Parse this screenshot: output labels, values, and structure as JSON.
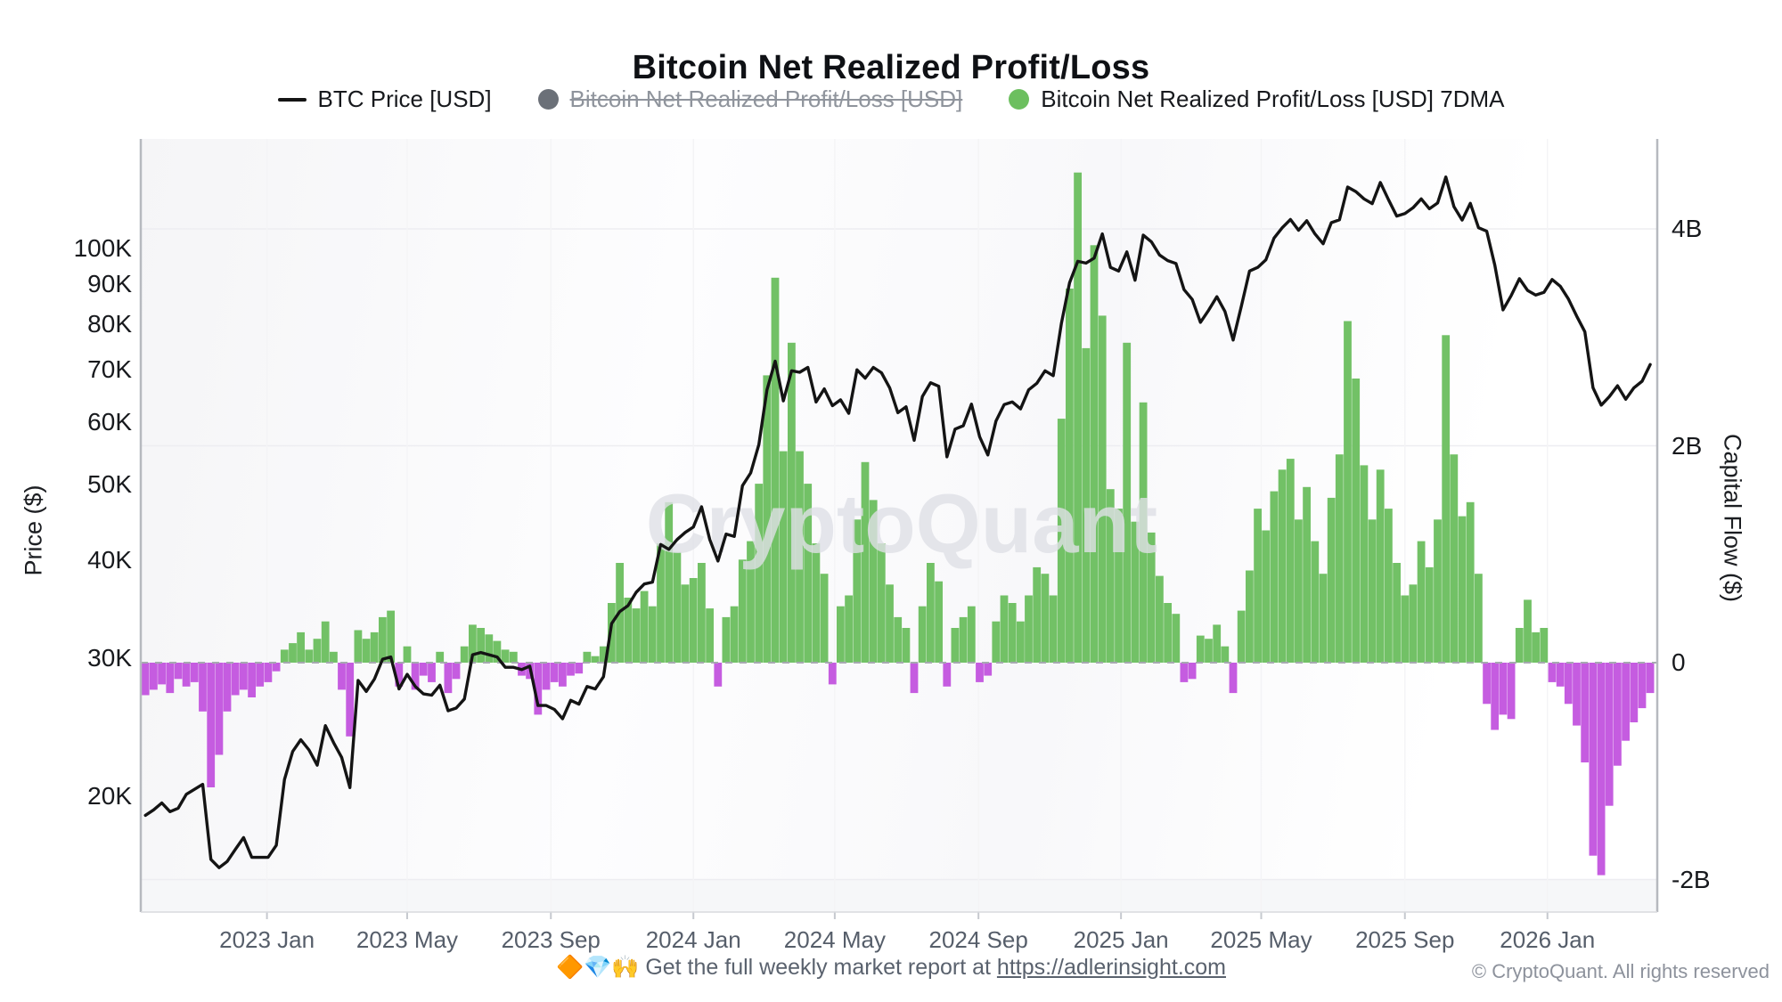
{
  "header": {
    "title": "Bitcoin Net Realized Profit/Loss"
  },
  "legend": [
    {
      "marker": "line",
      "color": "#141414",
      "label": "BTC Price [USD]",
      "disabled": false
    },
    {
      "marker": "dot",
      "color": "#6b7078",
      "label": "Bitcoin Net Realized Profit/Loss [USD]",
      "disabled": true
    },
    {
      "marker": "dot",
      "color": "#6cbf5f",
      "label": "Bitcoin Net Realized Profit/Loss [USD] 7DMA",
      "disabled": false
    }
  ],
  "watermark": "CryptoQuant",
  "footer": {
    "promo_prefix": "🔶💎🙌 Get the full weekly market report at ",
    "promo_link": "https://adlerinsight.com",
    "copyright": "© CryptoQuant. All rights reserved"
  },
  "chart_data": {
    "type": "line+bar",
    "title": "Bitcoin Net Realized Profit/Loss",
    "start_date": "2022-09-19",
    "interval_days": 7,
    "x_axis": {
      "range": [
        "2022-09-15",
        "2026-04-05"
      ],
      "ticks": [
        {
          "label": "2023 Jan",
          "date": "2023-01-01"
        },
        {
          "label": "2023 May",
          "date": "2023-05-01"
        },
        {
          "label": "2023 Sep",
          "date": "2023-09-01"
        },
        {
          "label": "2024 Jan",
          "date": "2024-01-01"
        },
        {
          "label": "2024 May",
          "date": "2024-05-01"
        },
        {
          "label": "2024 Sep",
          "date": "2024-09-01"
        },
        {
          "label": "2025 Jan",
          "date": "2025-01-01"
        },
        {
          "label": "2025 May",
          "date": "2025-05-01"
        },
        {
          "label": "2025 Sep",
          "date": "2025-09-01"
        },
        {
          "label": "2026 Jan",
          "date": "2026-01-01"
        }
      ]
    },
    "y_left": {
      "label": "Price ($)",
      "scale": "log",
      "range_usd": [
        14000,
        138000
      ],
      "ticks": [
        {
          "label": "100K",
          "value": 100000
        },
        {
          "label": "90K",
          "value": 90000
        },
        {
          "label": "80K",
          "value": 80000
        },
        {
          "label": "70K",
          "value": 70000
        },
        {
          "label": "60K",
          "value": 60000
        },
        {
          "label": "50K",
          "value": 50000
        },
        {
          "label": "40K",
          "value": 40000
        },
        {
          "label": "30K",
          "value": 30000
        },
        {
          "label": "20K",
          "value": 20000
        }
      ]
    },
    "y_right": {
      "label": "Capital Flow ($)",
      "scale": "linear",
      "range_billion": [
        -2.3,
        4.83
      ],
      "gridlines": [
        4,
        2,
        -2
      ],
      "zero_line": {
        "style": "dashed",
        "color": "#a6a9b0"
      },
      "ticks": [
        {
          "label": "4B",
          "value": 4
        },
        {
          "label": "2B",
          "value": 2
        },
        {
          "label": "0",
          "value": 0
        },
        {
          "label": "-2B",
          "value": -2
        }
      ]
    },
    "series": [
      {
        "name": "BTC Price [USD]",
        "type": "line",
        "axis": "left",
        "color": "#141414",
        "values": [
          18900,
          19200,
          19600,
          19100,
          19300,
          20100,
          20400,
          20700,
          16600,
          16200,
          16500,
          17100,
          17700,
          16700,
          16700,
          16700,
          17300,
          21000,
          22800,
          23600,
          22900,
          21900,
          24600,
          23400,
          22400,
          20500,
          28100,
          27200,
          28200,
          29900,
          30100,
          27400,
          28600,
          27600,
          27000,
          26900,
          27700,
          25700,
          25900,
          26600,
          30300,
          30500,
          30300,
          30100,
          29200,
          29200,
          29000,
          29300,
          26100,
          26100,
          25800,
          25100,
          26500,
          26200,
          27600,
          27400,
          28400,
          33200,
          34400,
          35000,
          36400,
          37300,
          37500,
          41900,
          41300,
          42500,
          43400,
          44100,
          46800,
          42500,
          39900,
          43200,
          42900,
          49800,
          51700,
          56200,
          66000,
          71800,
          63900,
          69800,
          69500,
          70500,
          63700,
          66200,
          63000,
          64100,
          61600,
          70000,
          68300,
          70500,
          69400,
          66400,
          61700,
          62800,
          56900,
          64700,
          67400,
          66700,
          54200,
          58800,
          59400,
          63300,
          57500,
          54500,
          60200,
          63200,
          63700,
          62400,
          66000,
          67300,
          69800,
          68800,
          80300,
          90400,
          96300,
          95800,
          97200,
          104400,
          94600,
          93600,
          99000,
          91100,
          104000,
          102000,
          98100,
          96500,
          95700,
          88600,
          86100,
          80500,
          83400,
          86800,
          83100,
          76400,
          84400,
          93600,
          94600,
          96700,
          103100,
          106300,
          108900,
          105500,
          108500,
          104400,
          101400,
          107900,
          108800,
          119800,
          118200,
          115700,
          114100,
          121400,
          115400,
          110000,
          110800,
          112700,
          115700,
          112400,
          114300,
          123400,
          113100,
          108700,
          114200,
          106300,
          105200,
          95200,
          83500,
          87100,
          91500,
          88400,
          87200,
          87900,
          91300,
          89500,
          86200,
          82000,
          78300,
          66400,
          63100,
          64700,
          66800,
          64200,
          66400,
          67700,
          71100
        ]
      },
      {
        "name": "Bitcoin Net Realized Profit/Loss [USD] 7DMA",
        "type": "bar",
        "axis": "right",
        "unit": "billion USD",
        "color_positive": "#72c166",
        "color_negative": "#c55ce0",
        "values": [
          -0.3,
          -0.25,
          -0.2,
          -0.28,
          -0.15,
          -0.22,
          -0.18,
          -0.45,
          -1.15,
          -0.85,
          -0.45,
          -0.3,
          -0.25,
          -0.32,
          -0.22,
          -0.18,
          -0.08,
          0.12,
          0.18,
          0.28,
          0.12,
          0.22,
          0.38,
          0.1,
          -0.25,
          -0.68,
          0.3,
          0.22,
          0.28,
          0.42,
          0.48,
          -0.22,
          0.15,
          -0.25,
          -0.12,
          -0.18,
          0.1,
          -0.28,
          -0.15,
          0.15,
          0.35,
          0.32,
          0.26,
          0.2,
          0.12,
          0.1,
          -0.12,
          -0.15,
          -0.48,
          -0.25,
          -0.18,
          -0.22,
          -0.12,
          -0.1,
          0.1,
          0.06,
          0.15,
          0.55,
          0.92,
          0.6,
          0.5,
          0.66,
          0.52,
          1.1,
          1.48,
          1.02,
          0.72,
          0.78,
          0.92,
          0.5,
          -0.22,
          0.42,
          0.52,
          0.95,
          1.12,
          1.65,
          2.65,
          3.55,
          1.95,
          2.95,
          1.95,
          1.65,
          1.1,
          0.82,
          -0.2,
          0.52,
          0.62,
          1.32,
          1.85,
          1.5,
          1.1,
          0.72,
          0.42,
          0.32,
          -0.28,
          0.52,
          0.92,
          0.75,
          -0.22,
          0.32,
          0.42,
          0.52,
          -0.18,
          -0.12,
          0.38,
          0.62,
          0.55,
          0.38,
          0.62,
          0.88,
          0.82,
          0.62,
          2.25,
          3.45,
          4.52,
          2.9,
          3.85,
          3.2,
          1.6,
          1.42,
          2.95,
          1.3,
          2.4,
          1.2,
          0.8,
          0.55,
          0.45,
          -0.18,
          -0.15,
          0.25,
          0.22,
          0.35,
          0.15,
          -0.28,
          0.48,
          0.85,
          1.42,
          1.22,
          1.58,
          1.78,
          1.88,
          1.32,
          1.62,
          1.12,
          0.82,
          1.52,
          1.92,
          3.15,
          2.62,
          1.82,
          1.32,
          1.78,
          1.42,
          0.92,
          0.62,
          0.72,
          1.12,
          0.88,
          1.32,
          3.02,
          1.92,
          1.35,
          1.48,
          0.82,
          -0.38,
          -0.62,
          -0.48,
          -0.52,
          0.32,
          0.58,
          0.28,
          0.32,
          -0.18,
          -0.22,
          -0.38,
          -0.58,
          -0.92,
          -1.78,
          -1.96,
          -1.32,
          -0.95,
          -0.72,
          -0.55,
          -0.42,
          -0.28
        ]
      }
    ]
  }
}
